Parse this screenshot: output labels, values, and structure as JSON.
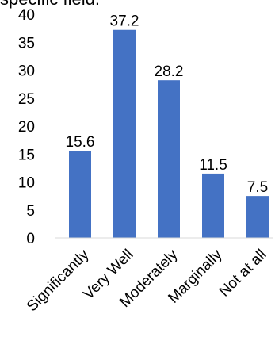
{
  "header_text": "specific field.",
  "chart_data": {
    "type": "bar",
    "title": "",
    "xlabel": "",
    "ylabel": "",
    "categories": [
      "Significantly",
      "Very Well",
      "Moderately",
      "Marginally",
      "Not at all"
    ],
    "values": [
      15.6,
      37.2,
      28.2,
      11.5,
      7.5
    ],
    "value_labels": [
      "15.6",
      "37.2",
      "28.2",
      "11.5",
      "7.5"
    ],
    "ylim": [
      0,
      40
    ],
    "yticks": [
      0,
      5,
      10,
      15,
      20,
      25,
      30,
      35,
      40
    ],
    "grid": false,
    "legend": "none",
    "bar_color": "#4472C4"
  }
}
